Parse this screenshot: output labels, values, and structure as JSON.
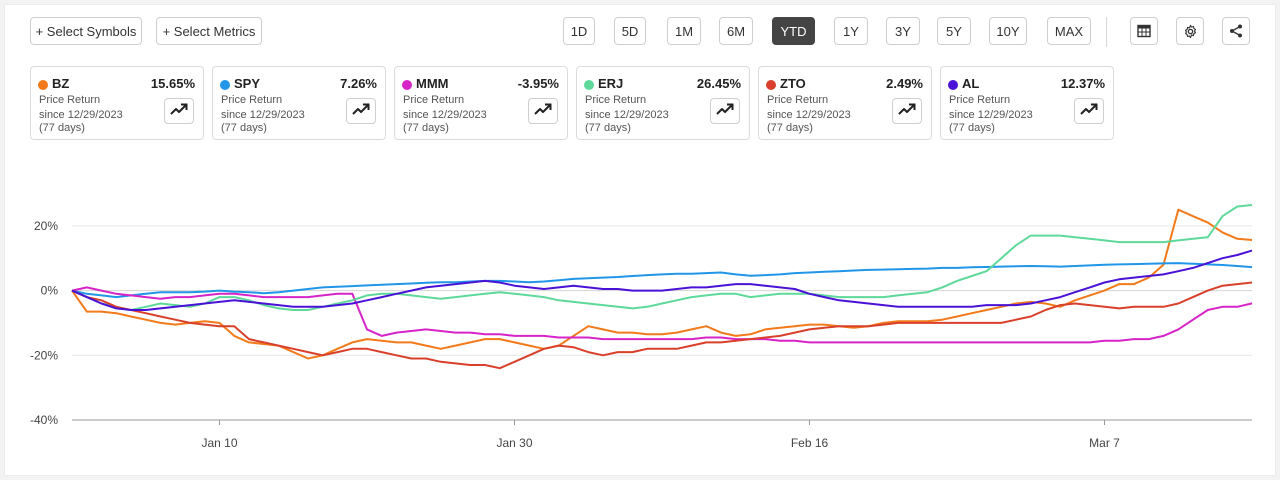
{
  "toolbar": {
    "select_symbols": "+ Select Symbols",
    "select_metrics": "+ Select Metrics",
    "ranges": [
      "1D",
      "5D",
      "1M",
      "6M",
      "YTD",
      "1Y",
      "3Y",
      "5Y",
      "10Y",
      "MAX"
    ],
    "active_range": "YTD",
    "icons": [
      "table-icon",
      "settings-icon",
      "share-icon"
    ]
  },
  "cards": [
    {
      "symbol": "BZ",
      "value": "15.65%",
      "metric": "Price Return",
      "since": "since 12/29/2023",
      "days": "(77 days)",
      "color": "#f27a1a"
    },
    {
      "symbol": "SPY",
      "value": "7.26%",
      "metric": "Price Return",
      "since": "since 12/29/2023",
      "days": "(77 days)",
      "color": "#2196e8"
    },
    {
      "symbol": "MMM",
      "value": "-3.95%",
      "metric": "Price Return",
      "since": "since 12/29/2023",
      "days": "(77 days)",
      "color": "#d624c8"
    },
    {
      "symbol": "ERJ",
      "value": "26.45%",
      "metric": "Price Return",
      "since": "since 12/29/2023",
      "days": "(77 days)",
      "color": "#5ed99a"
    },
    {
      "symbol": "ZTO",
      "value": "2.49%",
      "metric": "Price Return",
      "since": "since 12/29/2023",
      "days": "(77 days)",
      "color": "#d9402b"
    },
    {
      "symbol": "AL",
      "value": "12.37%",
      "metric": "Price Return",
      "since": "since 12/29/2023",
      "days": "(77 days)",
      "color": "#4a12d6"
    }
  ],
  "chart_data": {
    "type": "line",
    "title": "",
    "xlabel": "",
    "ylabel": "",
    "x_tick_labels": [
      "Jan 10",
      "Jan 30",
      "Feb 16",
      "Mar 7"
    ],
    "x_tick_index": [
      10,
      30,
      50,
      70
    ],
    "y_tick_labels": [
      "20%",
      "0%",
      "-20%",
      "-40%"
    ],
    "y_ticks": [
      20,
      0,
      -20,
      -40
    ],
    "ylim": [
      -40,
      28
    ],
    "x_count": 81,
    "grid": "horizontal",
    "series": [
      {
        "name": "BZ",
        "color": "#f27a1a",
        "values": [
          0,
          -6.5,
          -6.5,
          -7,
          -8,
          -9,
          -10,
          -10.5,
          -10,
          -9.5,
          -10,
          -14,
          -16,
          -16.5,
          -17,
          -19,
          -21,
          -20,
          -18,
          -16,
          -15,
          -15.5,
          -16,
          -16,
          -17,
          -18,
          -17,
          -16,
          -15,
          -15,
          -16,
          -17,
          -18,
          -17,
          -14,
          -11,
          -12,
          -13,
          -13,
          -13.5,
          -13.5,
          -13,
          -12,
          -11,
          -13,
          -14,
          -13.5,
          -12,
          -11.5,
          -11,
          -10.5,
          -10.5,
          -11,
          -11.5,
          -11,
          -10,
          -9.5,
          -9.5,
          -9.5,
          -9,
          -8,
          -7,
          -6,
          -5,
          -4,
          -3.5,
          -4,
          -5,
          -3,
          -1.5,
          0,
          2,
          2,
          4,
          8,
          25,
          23,
          21,
          18,
          16,
          15.65
        ]
      },
      {
        "name": "SPY",
        "color": "#2196e8",
        "values": [
          0,
          -1,
          -1.5,
          -2,
          -1.5,
          -1,
          -0.5,
          -0.5,
          -0.5,
          -0.3,
          0,
          -0.3,
          -0.5,
          -0.8,
          -0.5,
          0,
          0.5,
          1,
          1.2,
          1.4,
          1.6,
          1.8,
          2,
          2.2,
          2.4,
          2.6,
          2.6,
          2.8,
          3,
          3,
          2.8,
          2.6,
          2.8,
          3.2,
          3.6,
          3.8,
          4,
          4.2,
          4.5,
          4.8,
          5,
          5.2,
          5.2,
          5.4,
          5.6,
          5,
          4.6,
          4.8,
          5,
          5.4,
          5.6,
          5.8,
          6,
          6.2,
          6.4,
          6.5,
          6.6,
          6.7,
          6.8,
          7,
          7,
          7.2,
          7.3,
          7.4,
          7.5,
          7.6,
          7.5,
          7.4,
          7.6,
          7.8,
          8,
          8.1,
          8.2,
          8.3,
          8.4,
          8.5,
          8.3,
          8.1,
          7.9,
          7.6,
          7.26
        ]
      },
      {
        "name": "MMM",
        "color": "#d624c8",
        "values": [
          0,
          1,
          0,
          -1,
          -1.5,
          -2,
          -2.5,
          -2,
          -2,
          -1.5,
          -1,
          -1,
          -1.5,
          -2,
          -2,
          -2,
          -2,
          -1.5,
          -1,
          -1,
          -12,
          -14,
          -13,
          -12.5,
          -12,
          -12.5,
          -13,
          -13,
          -13.5,
          -13.5,
          -14,
          -14,
          -14,
          -14.5,
          -14.5,
          -14.5,
          -15,
          -15,
          -15,
          -15,
          -15,
          -15,
          -15,
          -14.5,
          -14.5,
          -15,
          -15,
          -15,
          -15.5,
          -15.5,
          -16,
          -16,
          -16,
          -16,
          -16,
          -16,
          -16,
          -16,
          -16,
          -16,
          -16,
          -16,
          -16,
          -16,
          -16,
          -16,
          -16,
          -16,
          -16,
          -16,
          -15.5,
          -15.5,
          -15,
          -15,
          -14,
          -12,
          -9,
          -6,
          -5,
          -5,
          -3.95
        ]
      },
      {
        "name": "ERJ",
        "color": "#5ed99a",
        "values": [
          0,
          -2,
          -4,
          -5,
          -6,
          -5,
          -4,
          -4.5,
          -5,
          -4,
          -2,
          -2,
          -3,
          -4.5,
          -5.5,
          -6,
          -6,
          -5,
          -4,
          -3,
          -1.5,
          -1,
          -1,
          -1.5,
          -2,
          -2.5,
          -2,
          -1.5,
          -1,
          -0.5,
          -1,
          -1.5,
          -2,
          -3,
          -3.5,
          -4,
          -4.5,
          -5,
          -5.5,
          -5,
          -4,
          -3,
          -2,
          -1.5,
          -1,
          -1,
          -2,
          -1.5,
          -1,
          -1,
          -1,
          -1.5,
          -2,
          -2,
          -2,
          -2,
          -1.5,
          -1,
          -0.5,
          1,
          3,
          4.5,
          6,
          10,
          14,
          17,
          17,
          17,
          16.5,
          16,
          15.5,
          15,
          15,
          15,
          15,
          15.5,
          16,
          16.5,
          23,
          26,
          26.45
        ]
      },
      {
        "name": "ZTO",
        "color": "#d9402b",
        "values": [
          0,
          -2,
          -3,
          -5,
          -6,
          -7,
          -8,
          -9,
          -10,
          -10.5,
          -11,
          -11,
          -15,
          -16,
          -17,
          -18,
          -19,
          -20,
          -19,
          -18,
          -18,
          -19,
          -20,
          -21,
          -21,
          -22,
          -22.5,
          -23,
          -23,
          -24,
          -22,
          -20,
          -18,
          -17,
          -17.5,
          -19,
          -20,
          -19,
          -19,
          -18,
          -18,
          -18,
          -17,
          -16,
          -16,
          -15.5,
          -15,
          -14.5,
          -14,
          -13,
          -12,
          -11.5,
          -11,
          -11,
          -11,
          -10.5,
          -10,
          -10,
          -10,
          -10,
          -10,
          -10,
          -10,
          -10,
          -9,
          -8,
          -6,
          -4.5,
          -4,
          -4.5,
          -5,
          -5.5,
          -5,
          -5,
          -5,
          -4,
          -2,
          0,
          1.5,
          2,
          2.49
        ]
      },
      {
        "name": "AL",
        "color": "#4a12d6",
        "values": [
          0,
          -2,
          -4,
          -5.5,
          -6,
          -6,
          -5.5,
          -5,
          -4.5,
          -4,
          -3.5,
          -3,
          -3.5,
          -4,
          -4.5,
          -5,
          -5,
          -5,
          -4.5,
          -4,
          -3,
          -2,
          -1,
          0,
          1,
          1.5,
          2,
          2.5,
          3,
          2.5,
          1.5,
          1,
          0.5,
          1,
          1.5,
          1,
          0.5,
          0.5,
          0,
          0,
          0,
          0.5,
          1,
          1,
          1.5,
          2,
          2,
          1.5,
          1,
          0.5,
          -1,
          -2,
          -3,
          -3.5,
          -4,
          -4.5,
          -5,
          -5,
          -5,
          -5,
          -5,
          -5,
          -4.5,
          -4.5,
          -4.5,
          -4,
          -3,
          -2,
          -0.5,
          1,
          2.5,
          3.5,
          4,
          4.5,
          5,
          6,
          7,
          8.5,
          10,
          11,
          12.37
        ]
      }
    ]
  }
}
